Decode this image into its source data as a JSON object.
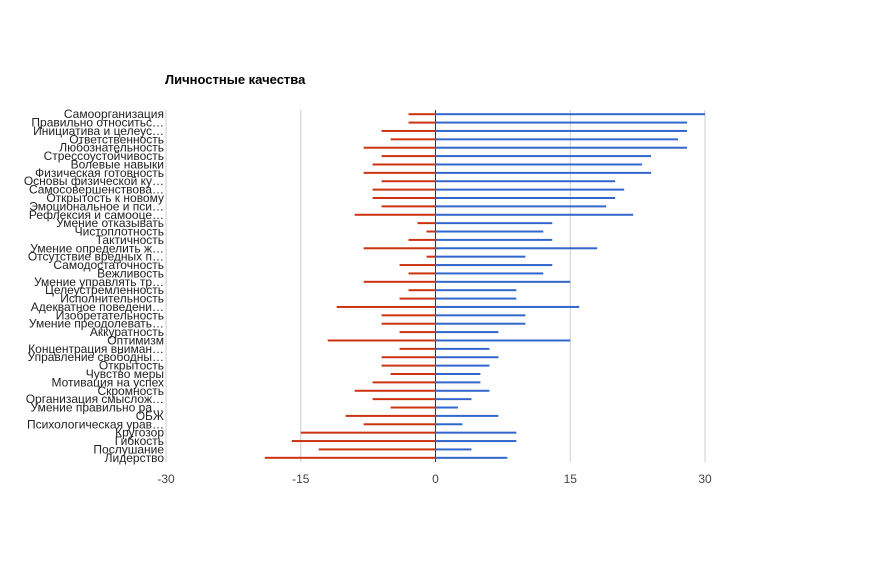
{
  "chart_data": {
    "type": "bar",
    "orientation": "horizontal",
    "title": "Личностные качества",
    "xlim": [
      -30,
      30
    ],
    "xticks": [
      -30,
      -15,
      0,
      15,
      30
    ],
    "xtick_labels": [
      "-30",
      "-15",
      "0",
      "15",
      "30"
    ],
    "grid": true,
    "legend": "none",
    "colors": {
      "negative": "#cc3311",
      "positive": "#3366cc",
      "grid": "#cccccc",
      "zero_line": "#333333"
    },
    "categories": [
      "Самоорганизация",
      "Правильно относитьс…",
      "Инициатива и целеус…",
      "Ответственность",
      "Любознательность",
      "Стрессоустойчивость",
      "Волевые навыки",
      "Физическая готовность",
      "Основы физической ку…",
      "Самосовершенствова…",
      "Открытость к новому",
      "Эмоциональное и пси…",
      "Рефлексия и самооце…",
      "Умение отказывать",
      "Чистоплотность",
      "Тактичность",
      "Умение определить ж…",
      "Отсутствие вредных п…",
      "Самодостаточность",
      "Вежливость",
      "Умение управлять тр…",
      "Целеустремленность",
      "Исполнительность",
      "Адекватное поведени…",
      "Изобретательность",
      "Умение преодолевать…",
      "Аккуратность",
      "Оптимизм",
      "Концентрация вниман…",
      "Управление свободны…",
      "Открытость",
      "Чувство меры",
      "Мотивация на успех",
      "Скромность",
      "Организация смыслож…",
      "Умение правильно ра…",
      "ОБЖ",
      "Психологическая урав…",
      "Кругозор",
      "Гибкость",
      "Послушание",
      "Лидерство"
    ],
    "series": [
      {
        "values": [
          -3,
          -3,
          -6,
          -5,
          -8,
          -6,
          -7,
          -8,
          -6,
          -7,
          -7,
          -6,
          -9,
          -2,
          -1,
          -3,
          -8,
          -1,
          -4,
          -3,
          -8,
          -3,
          -4,
          -11,
          -6,
          -6,
          -4,
          -12,
          -4,
          -6,
          -6,
          -5,
          -7,
          -9,
          -7,
          -5,
          -10,
          -8,
          -15,
          -16,
          -13,
          -19
        ]
      },
      {
        "values": [
          30,
          28,
          28,
          27,
          28,
          24,
          23,
          24,
          20,
          21,
          20,
          19,
          22,
          13,
          12,
          13,
          18,
          10,
          13,
          12,
          15,
          9,
          9,
          16,
          10,
          10,
          7,
          15,
          6,
          7,
          6,
          5,
          5,
          6,
          4,
          2.5,
          7,
          3,
          9,
          9,
          4,
          8
        ]
      }
    ]
  }
}
